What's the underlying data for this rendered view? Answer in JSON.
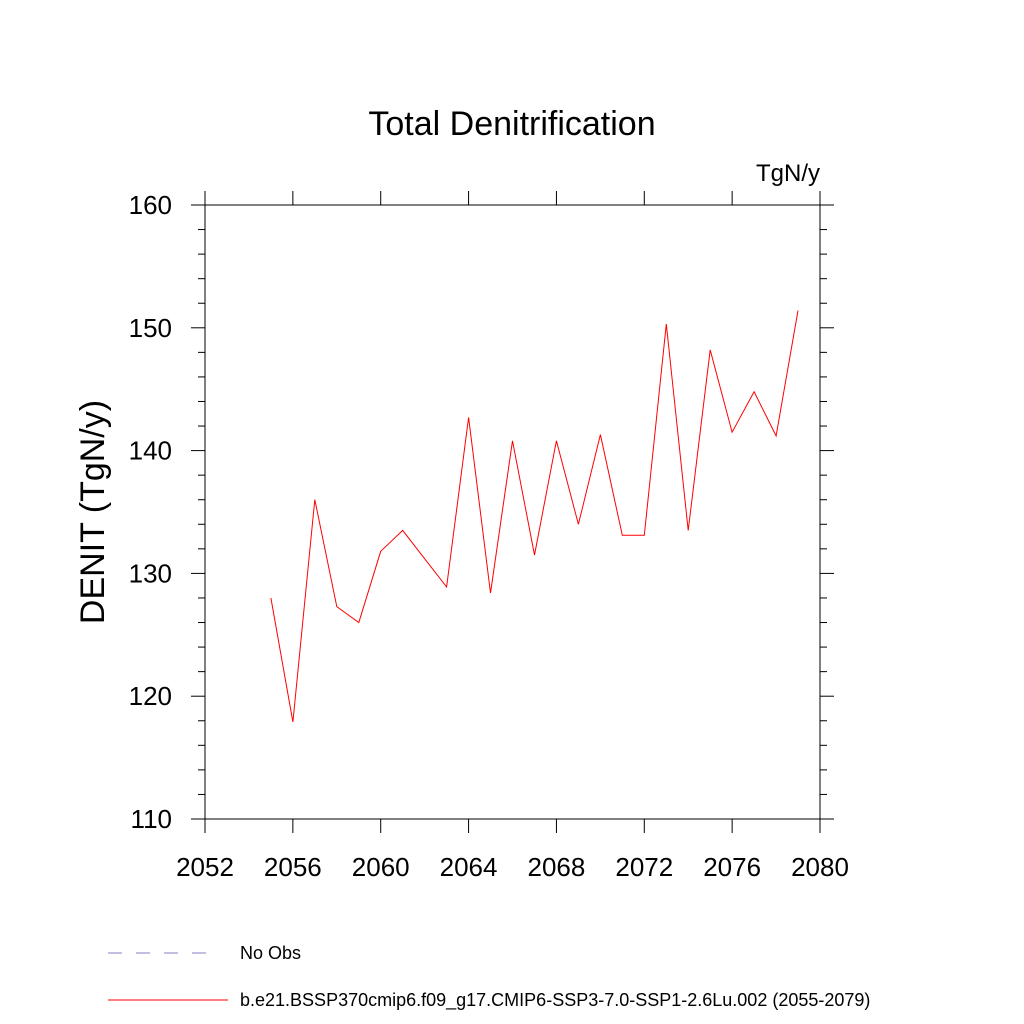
{
  "chart_data": {
    "type": "line",
    "title": "Total Denitrification",
    "units_label": "TgN/y",
    "ylabel": "DENIT  (TgN/y)",
    "xlabel": "",
    "xlim": [
      2052,
      2080
    ],
    "ylim": [
      110,
      160
    ],
    "x_ticks": [
      2052,
      2056,
      2060,
      2064,
      2068,
      2072,
      2076,
      2080
    ],
    "y_ticks": [
      110,
      120,
      130,
      140,
      150,
      160
    ],
    "grid": false,
    "series": [
      {
        "name": "b.e21.BSSP370cmip6.f09_g17.CMIP6-SSP3-7.0-SSP1-2.6Lu.002 (2055-2079)",
        "color": "#ff0000",
        "x": [
          2055,
          2056,
          2057,
          2058,
          2059,
          2060,
          2061,
          2062,
          2063,
          2064,
          2065,
          2066,
          2067,
          2068,
          2069,
          2070,
          2071,
          2072,
          2073,
          2074,
          2075,
          2076,
          2077,
          2078,
          2079
        ],
        "y": [
          128.0,
          117.9,
          136.0,
          127.3,
          126.0,
          131.8,
          133.5,
          131.2,
          128.9,
          142.7,
          128.4,
          140.8,
          131.5,
          140.8,
          134.0,
          141.3,
          133.1,
          133.1,
          150.3,
          133.5,
          148.2,
          141.5,
          144.8,
          141.2,
          151.4
        ]
      }
    ],
    "legend": [
      {
        "label": "No Obs",
        "color": "#8a7fc0",
        "style": "dashed"
      },
      {
        "label": "b.e21.BSSP370cmip6.f09_g17.CMIP6-SSP3-7.0-SSP1-2.6Lu.002 (2055-2079)",
        "color": "#ff0000",
        "style": "solid"
      }
    ]
  }
}
